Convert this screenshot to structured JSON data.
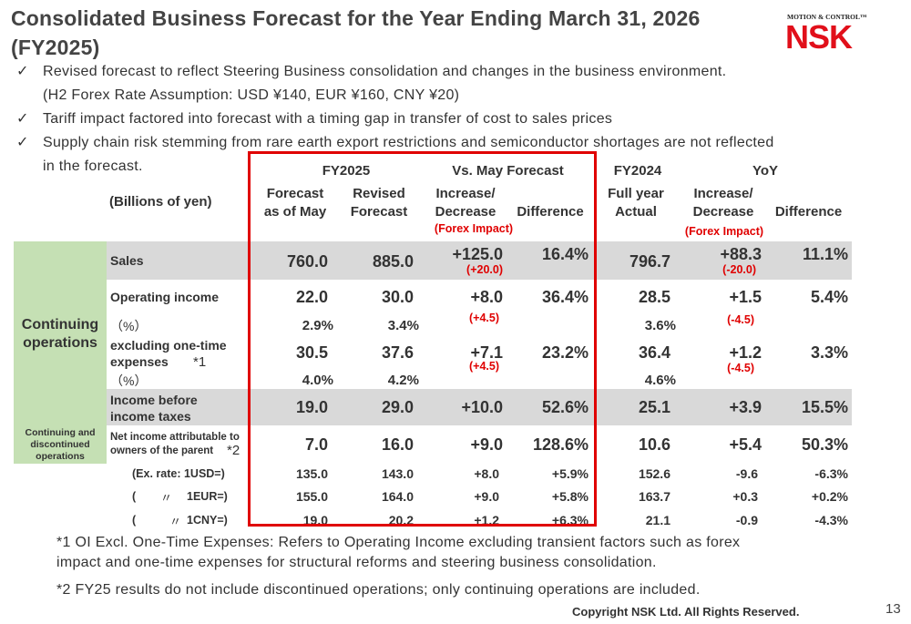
{
  "title": "Consolidated Business Forecast for the Year Ending March 31, 2026 (FY2025)",
  "logo": {
    "tagline": "MOTION & CONTROL™",
    "word": "NSK"
  },
  "bullets": [
    {
      "check": "✓",
      "text": "Revised forecast to reflect Steering Business consolidation and changes in the business environment.",
      "sub": "(H2 Forex Rate Assumption: USD ¥140, EUR ¥160, CNY ¥20)"
    },
    {
      "check": "✓",
      "text": "Tariff impact factored into forecast with a timing gap in transfer of cost to sales prices"
    },
    {
      "check": "✓",
      "text": "Supply chain risk stemming from rare earth export restrictions and semiconductor shortages are not reflected",
      "sub": "in the forecast."
    }
  ],
  "table": {
    "unit_label": "(Billions of yen)",
    "groups": {
      "fy2025": "FY2025",
      "vs_may": "Vs. May Forecast",
      "fy2024": "FY2024",
      "yoy": "YoY"
    },
    "cols": {
      "forecast_may": [
        "Forecast",
        "as of May"
      ],
      "revised": [
        "Revised",
        "Forecast"
      ],
      "incdec": [
        "Increase/",
        "Decrease"
      ],
      "diff": "Difference",
      "full_year": [
        "Full year",
        "Actual"
      ],
      "yoy_incdec": [
        "Increase/",
        "Decrease"
      ],
      "yoy_diff": "Difference",
      "forex_note": "(Forex Impact)"
    },
    "segments": {
      "continuing": [
        "Continuing",
        "operations"
      ],
      "cont_disc": [
        "Continuing and",
        "discontinued",
        "operations"
      ]
    },
    "rows": {
      "sales": {
        "label": "Sales",
        "may": "760.0",
        "rev": "885.0",
        "inc": "+125.0",
        "inc_fx": "(+20.0)",
        "diff": "16.4%",
        "fy24": "796.7",
        "yoy_inc": "+88.3",
        "yoy_fx": "(-20.0)",
        "yoy_diff": "11.1%"
      },
      "op": {
        "label": "Operating income",
        "may": "22.0",
        "rev": "30.0",
        "inc": "+8.0",
        "inc_fx": "(+4.5)",
        "diff": "36.4%",
        "fy24": "28.5",
        "yoy_inc": "+1.5",
        "yoy_fx": "(-4.5)",
        "yoy_diff": "5.4%"
      },
      "op_pct": {
        "label": "（%）",
        "may": "2.9%",
        "rev": "3.4%",
        "fy24": "3.6%"
      },
      "excl": {
        "label": [
          "excluding one-time",
          "expenses"
        ],
        "note": "*1",
        "may": "30.5",
        "rev": "37.6",
        "inc": "+7.1",
        "inc_fx": "(+4.5)",
        "diff": "23.2%",
        "fy24": "36.4",
        "yoy_inc": "+1.2",
        "yoy_fx": "(-4.5)",
        "yoy_diff": "3.3%"
      },
      "excl_pct": {
        "label": "（%）",
        "may": "4.0%",
        "rev": "4.2%",
        "fy24": "4.6%"
      },
      "ibt": {
        "label": [
          "Income before",
          "income taxes"
        ],
        "may": "19.0",
        "rev": "29.0",
        "inc": "+10.0",
        "diff": "52.6%",
        "fy24": "25.1",
        "yoy_inc": "+3.9",
        "yoy_diff": "15.5%"
      },
      "ni": {
        "label": [
          "Net income attributable to",
          "owners of the parent"
        ],
        "note": "*2",
        "may": "7.0",
        "rev": "16.0",
        "inc": "+9.0",
        "diff": "128.6%",
        "fy24": "10.6",
        "yoy_inc": "+5.4",
        "yoy_diff": "50.3%"
      },
      "usd": {
        "label": "(Ex. rate: 1USD=)",
        "may": "135.0",
        "rev": "143.0",
        "inc": "+8.0",
        "diff": "+5.9%",
        "fy24": "152.6",
        "yoy_inc": "-9.6",
        "yoy_diff": "-6.3%"
      },
      "eur": {
        "label_a": "(",
        "label_b": "〃",
        "label_c": "1EUR=)",
        "may": "155.0",
        "rev": "164.0",
        "inc": "+9.0",
        "diff": "+5.8%",
        "fy24": "163.7",
        "yoy_inc": "+0.3",
        "yoy_diff": "+0.2%"
      },
      "cny": {
        "label_a": "(",
        "label_b": "〃",
        "label_c": "1CNY=)",
        "may": "19.0",
        "rev": "20.2",
        "inc": "+1.2",
        "diff": "+6.3%",
        "fy24": "21.1",
        "yoy_inc": "-0.9",
        "yoy_diff": "-4.3%"
      }
    }
  },
  "footnotes": [
    "*1 OI Excl. One-Time Expenses: Refers to Operating Income excluding transient factors such as forex",
    "impact and one-time expenses for structural reforms and steering business consolidation.",
    "*2 FY25 results do not include discontinued operations; only continuing operations are included."
  ],
  "copyright": "Copyright NSK Ltd. All Rights Reserved.",
  "page_number": "13",
  "colors": {
    "accent_red": "#e00000",
    "logo_red": "#e10f1a",
    "band_gray": "#d9d9d9",
    "segment_green": "#c5e0b4"
  }
}
